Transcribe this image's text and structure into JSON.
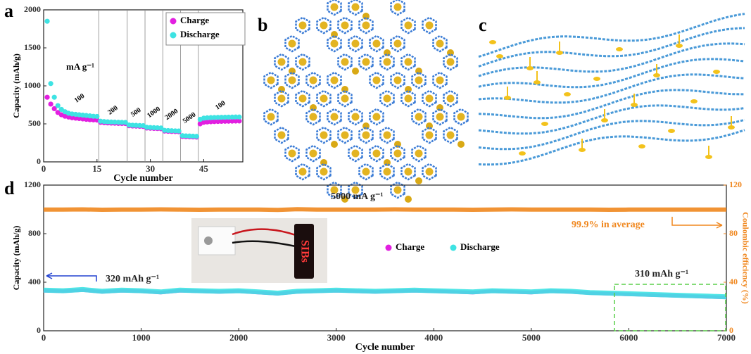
{
  "panel_labels": [
    "a",
    "b",
    "c",
    "d"
  ],
  "inset_text": "SIBs",
  "chart_data": [
    {
      "type": "scatter",
      "xlabel": "Cycle number",
      "ylabel": "Capacity (mAh/g)",
      "xlim": [
        0,
        56
      ],
      "xticks": [
        0,
        15,
        30,
        45
      ],
      "ylim": [
        0,
        2000
      ],
      "yticks": [
        0,
        500,
        1000,
        1500,
        2000
      ],
      "unit_label": "mA g⁻¹",
      "rate_labels": [
        "100",
        "200",
        "500",
        "1000",
        "2000",
        "5000",
        "100"
      ],
      "dividers": [
        15.5,
        23.5,
        28.5,
        33.5,
        38.5,
        43.5
      ],
      "legend": "upper right",
      "x": [
        1,
        2,
        3,
        4,
        5,
        6,
        7,
        8,
        9,
        10,
        11,
        12,
        13,
        14,
        15,
        16,
        17,
        18,
        19,
        20,
        21,
        22,
        23,
        24,
        25,
        26,
        27,
        28,
        29,
        30,
        31,
        32,
        33,
        34,
        35,
        36,
        37,
        38,
        39,
        40,
        41,
        42,
        43,
        44,
        45,
        46,
        47,
        48,
        49,
        50,
        51,
        52,
        53,
        54,
        55
      ],
      "series": [
        {
          "name": "Charge",
          "color": "#e21fe0",
          "values": [
            850,
            760,
            700,
            650,
            620,
            600,
            590,
            580,
            575,
            570,
            565,
            560,
            555,
            552,
            550,
            520,
            515,
            512,
            510,
            508,
            506,
            505,
            504,
            475,
            472,
            470,
            468,
            466,
            445,
            442,
            440,
            438,
            436,
            405,
            402,
            400,
            398,
            396,
            335,
            332,
            330,
            328,
            326,
            500,
            520,
            525,
            528,
            530,
            532,
            533,
            534,
            535,
            536,
            537,
            538
          ]
        },
        {
          "name": "Discharge",
          "color": "#3ee3e3",
          "values": [
            1850,
            1030,
            850,
            740,
            690,
            660,
            640,
            630,
            625,
            620,
            615,
            610,
            605,
            600,
            598,
            535,
            530,
            527,
            525,
            523,
            521,
            520,
            519,
            485,
            482,
            480,
            478,
            476,
            455,
            452,
            450,
            448,
            446,
            415,
            412,
            410,
            408,
            406,
            345,
            342,
            340,
            338,
            336,
            560,
            575,
            580,
            582,
            584,
            585,
            586,
            587,
            588,
            589,
            590,
            590
          ]
        }
      ]
    },
    {
      "type": "line",
      "xlabel": "Cycle number",
      "ylabel": "Capacity (mAh/g)",
      "y2label": "Coulombic efficiency (%)",
      "xlim": [
        0,
        7000
      ],
      "xticks": [
        0,
        1000,
        2000,
        3000,
        4000,
        5000,
        6000,
        7000
      ],
      "ylim": [
        0,
        1200
      ],
      "yticks": [
        0,
        400,
        800,
        1200
      ],
      "y2lim": [
        0,
        120
      ],
      "y2ticks": [
        0,
        40,
        80,
        120
      ],
      "annotations": [
        "5000 mA g⁻¹",
        "99.9% in average",
        "320 mAh g⁻¹",
        "310 mAh g⁻¹"
      ],
      "legend": "center",
      "x": [
        0,
        200,
        400,
        600,
        800,
        1000,
        1200,
        1400,
        1600,
        1800,
        2000,
        2200,
        2400,
        2600,
        2800,
        3000,
        3200,
        3400,
        3600,
        3800,
        4000,
        4200,
        4400,
        4600,
        4800,
        5000,
        5200,
        5400,
        5600,
        5800,
        6000,
        6200,
        6400,
        6600,
        6800,
        7000
      ],
      "series": [
        {
          "name": "Charge",
          "color": "#e21fe0",
          "values": [
            330,
            325,
            335,
            320,
            330,
            325,
            315,
            330,
            325,
            320,
            325,
            315,
            305,
            320,
            325,
            330,
            325,
            320,
            325,
            330,
            325,
            320,
            315,
            325,
            320,
            315,
            325,
            320,
            310,
            305,
            300,
            295,
            290,
            285,
            280,
            275
          ]
        },
        {
          "name": "Discharge",
          "color": "#3ee3e3",
          "values": [
            335,
            330,
            340,
            325,
            335,
            330,
            320,
            335,
            330,
            325,
            330,
            320,
            310,
            325,
            330,
            335,
            330,
            325,
            330,
            335,
            330,
            325,
            320,
            330,
            325,
            320,
            330,
            325,
            315,
            310,
            305,
            300,
            295,
            290,
            285,
            280
          ]
        },
        {
          "color": "#f0871e",
          "axis": "y2",
          "values": [
            99.8,
            99.9,
            100,
            99.7,
            99.9,
            99.8,
            100,
            99.9,
            99.7,
            99.9,
            99.8,
            99.9,
            99.6,
            100.2,
            99.8,
            99.9,
            99.9,
            99.8,
            100,
            99.9,
            99.8,
            99.9,
            99.7,
            99.9,
            100,
            99.8,
            99.9,
            99.8,
            99.9,
            99.7,
            99.8,
            99.9,
            99.8,
            99.9,
            99.8,
            99.9
          ]
        }
      ]
    }
  ]
}
